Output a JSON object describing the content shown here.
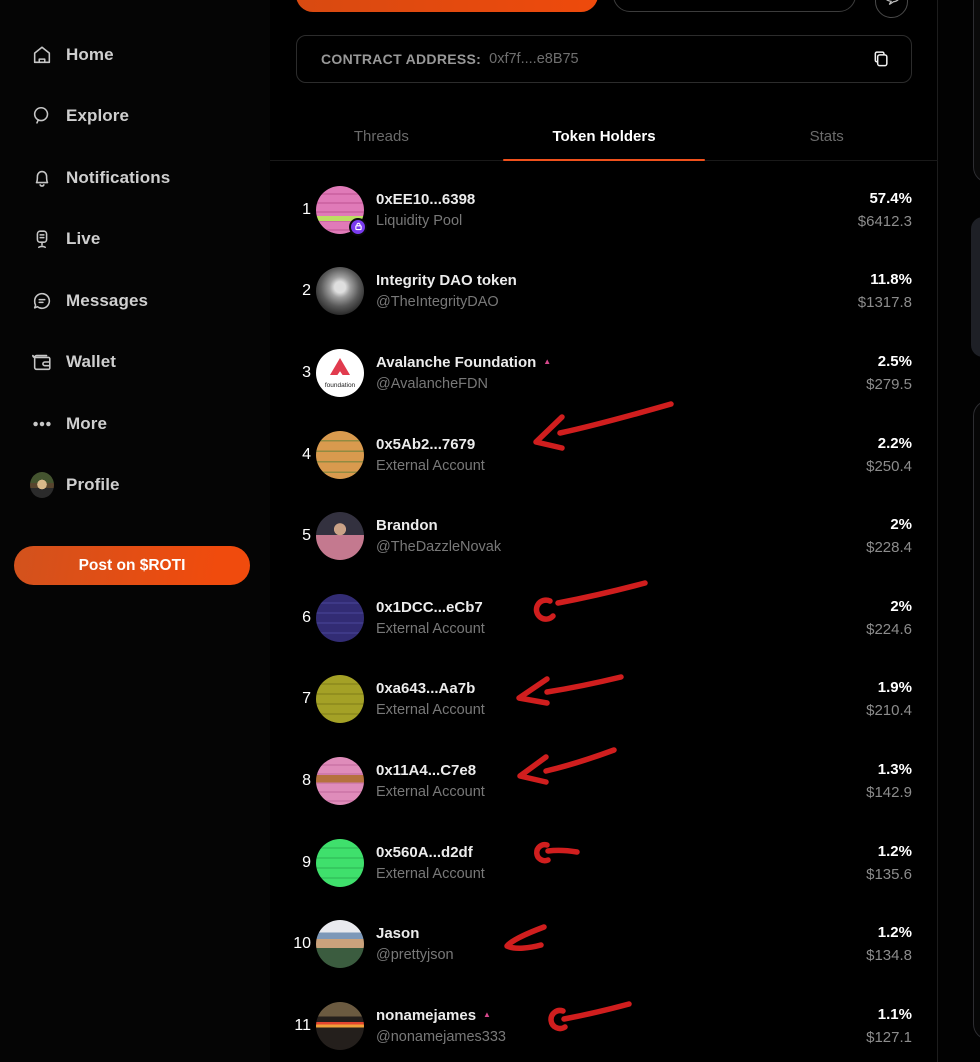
{
  "sidebar": {
    "items": [
      {
        "label": "Home"
      },
      {
        "label": "Explore"
      },
      {
        "label": "Notifications"
      },
      {
        "label": "Live"
      },
      {
        "label": "Messages"
      },
      {
        "label": "Wallet"
      },
      {
        "label": "More"
      },
      {
        "label": "Profile"
      }
    ],
    "post_button_label": "Post on $ROTI"
  },
  "contract": {
    "label": "CONTRACT ADDRESS:",
    "value": "0xf7f....e8B75"
  },
  "tabs": [
    {
      "label": "Threads",
      "active": false
    },
    {
      "label": "Token Holders",
      "active": true
    },
    {
      "label": "Stats",
      "active": false
    }
  ],
  "holders": [
    {
      "rank": "1",
      "name": "0xEE10...6398",
      "subtitle": "Liquidity Pool",
      "percent": "57.4%",
      "value": "$6412.3",
      "badge": "lock",
      "avatar": "linear-gradient(180deg, rgba(0,0,0,0) 0 62%, #bcdf62 62% 73%, rgba(0,0,0,0) 73%), repeating-linear-gradient(180deg, #e07ab8 0 7px, #cf66a5 7px 9px)"
    },
    {
      "rank": "2",
      "name": "Integrity DAO token",
      "subtitle": "@TheIntegrityDAO",
      "percent": "11.8%",
      "value": "$1317.8",
      "avatar": "radial-gradient(circle at 50% 42%, #dedede 0 15%, #a0a0a0 28%, #5a5a5a 52%, #1d1d1d 82%)"
    },
    {
      "rank": "3",
      "name": "Avalanche Foundation",
      "subtitle": "@AvalancheFDN",
      "percent": "2.5%",
      "value": "$279.5",
      "badge": "triangle",
      "avatar": "#ffffff",
      "avatar_logo": true,
      "avatar_text": "foundation"
    },
    {
      "rank": "4",
      "name": "0x5Ab2...7679",
      "subtitle": "External Account",
      "percent": "2.2%",
      "value": "$250.4",
      "avatar": "repeating-linear-gradient(180deg, rgba(76,124,52,0) 0 9px, rgba(76,124,52,0.5) 9px 10.5px), #d99a4e"
    },
    {
      "rank": "5",
      "name": "Brandon",
      "subtitle": "@TheDazzleNovak",
      "percent": "2%",
      "value": "$228.4",
      "avatar": "radial-gradient(circle at 50% 36%, #caa287 0 15%, rgba(0,0,0,0) 16%), linear-gradient(180deg, #33313f 0 48%, #c4798f 48% 100%)"
    },
    {
      "rank": "6",
      "name": "0x1DCC...eCb7",
      "subtitle": "External Account",
      "percent": "2%",
      "value": "$224.6",
      "avatar": "repeating-linear-gradient(180deg, #322c74 0 8px, #3e3987 8px 10px)"
    },
    {
      "rank": "7",
      "name": "0xa643...Aa7b",
      "subtitle": "External Account",
      "percent": "1.9%",
      "value": "$210.4",
      "avatar": "repeating-linear-gradient(180deg, #a4a126 0 8px, #928f1f 8px 10px)"
    },
    {
      "rank": "8",
      "name": "0x11A4...C7e8",
      "subtitle": "External Account",
      "percent": "1.3%",
      "value": "$142.9",
      "avatar": "linear-gradient(180deg, rgba(0,0,0,0) 0 38%, #b5713d 38% 53%, rgba(0,0,0,0) 53%), repeating-linear-gradient(180deg, #df8cba 0 7px, #d07aab 7px 9px)"
    },
    {
      "rank": "9",
      "name": "0x560A...d2df",
      "subtitle": "External Account",
      "percent": "1.2%",
      "value": "$135.6",
      "avatar": "repeating-linear-gradient(180deg, #3fe06c 0 8px, #36ca60 8px 10px)"
    },
    {
      "rank": "10",
      "name": "Jason",
      "subtitle": "@prettyjson",
      "percent": "1.2%",
      "value": "$134.8",
      "avatar": "linear-gradient(180deg, #e9eaee 0 26%, #7d98b8 26% 40%, #caa27c 40% 58%, #3b5c3f 58% 100%)"
    },
    {
      "rank": "11",
      "name": "nonamejames",
      "subtitle": "@nonamejames333",
      "percent": "1.1%",
      "value": "$127.1",
      "badge": "triangle",
      "avatar": "linear-gradient(180deg, rgba(0,0,0,0) 0 42%, #e3452f 42% 47%, #f0a03a 47% 53%, rgba(0,0,0,0) 53%), linear-gradient(180deg, #6b5a40 0 30%, #241f1c 30% 100%)"
    }
  ],
  "colors": {
    "accent_orange": "#f0511c",
    "annotation_red": "#d91f1f",
    "lock_badge_purple": "#7a3bf0",
    "triangle_pink": "#d6488c"
  },
  "annotations": {
    "description": "hand-drawn red arrows pointing at holder rows 4, 6, 7, 8, 9, 10, 11"
  }
}
